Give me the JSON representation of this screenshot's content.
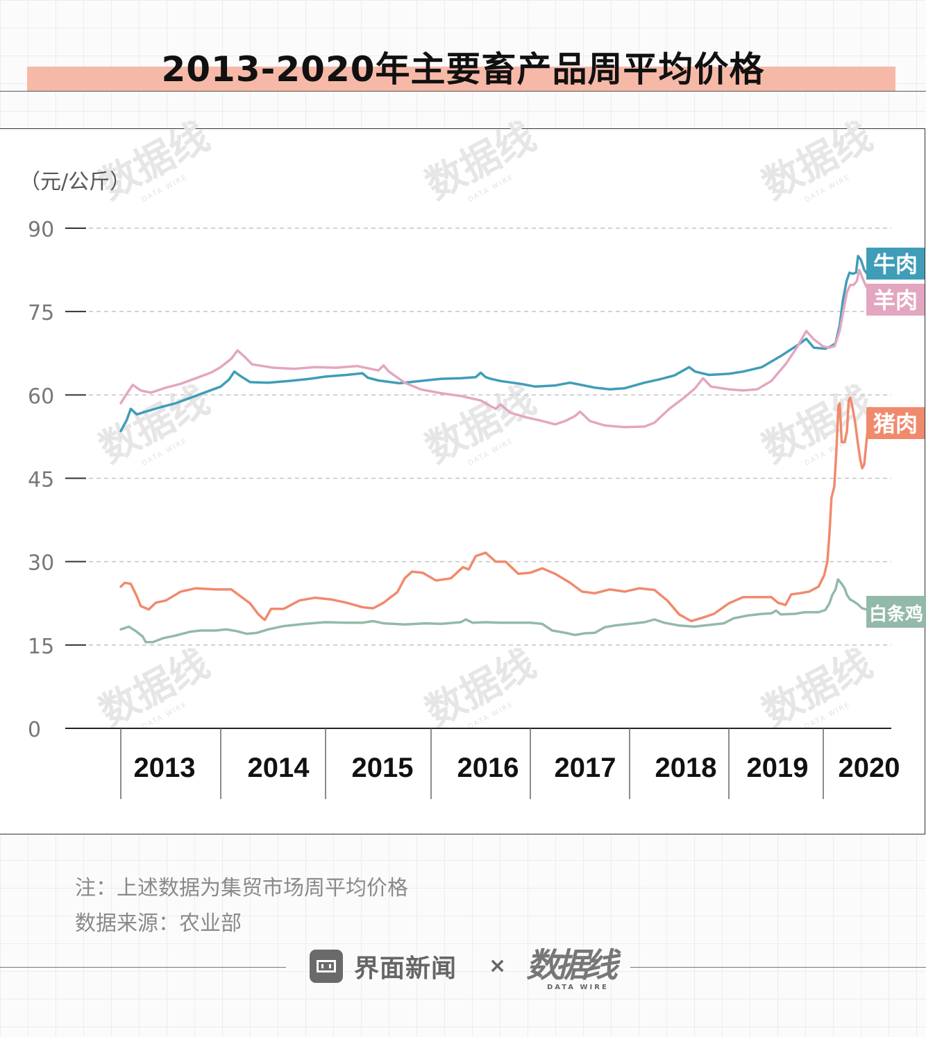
{
  "title": "2013-2020年主要畜产品周平均价格",
  "note": "注：上述数据为集贸市场周平均价格",
  "source": "数据来源：农业部",
  "footer": {
    "brand": "界面新闻",
    "cross": "×",
    "partner": "数据线",
    "partner_sub": "DATA WIRE"
  },
  "watermark": {
    "text": "数据线",
    "sub": "DATA WIRE"
  },
  "chart_data": {
    "type": "line",
    "title": "2013-2020年主要畜产品周平均价格",
    "unit_label": "（元/公斤）",
    "ylim": [
      0,
      90
    ],
    "y_ticks": [
      0,
      15,
      30,
      45,
      60,
      75,
      90
    ],
    "x_tick_labels": [
      "2013",
      "2014",
      "2015",
      "2016",
      "2017",
      "2018",
      "2019",
      "2020"
    ],
    "grid": true,
    "series": [
      {
        "name": "牛肉",
        "color": "#3f9db8",
        "points": [
          [
            2013.0,
            53.5
          ],
          [
            2013.06,
            55.5
          ],
          [
            2013.1,
            57.5
          ],
          [
            2013.16,
            56.5
          ],
          [
            2013.25,
            57.0
          ],
          [
            2013.4,
            57.8
          ],
          [
            2013.55,
            58.5
          ],
          [
            2013.7,
            59.5
          ],
          [
            2013.85,
            60.5
          ],
          [
            2014.0,
            61.5
          ],
          [
            2014.08,
            62.8
          ],
          [
            2014.13,
            64.2
          ],
          [
            2014.18,
            63.5
          ],
          [
            2014.28,
            62.3
          ],
          [
            2014.45,
            62.2
          ],
          [
            2014.65,
            62.5
          ],
          [
            2014.85,
            62.9
          ],
          [
            2015.0,
            63.3
          ],
          [
            2015.2,
            63.6
          ],
          [
            2015.35,
            63.9
          ],
          [
            2015.4,
            63.1
          ],
          [
            2015.5,
            62.6
          ],
          [
            2015.7,
            62.1
          ],
          [
            2015.9,
            62.5
          ],
          [
            2016.1,
            62.9
          ],
          [
            2016.3,
            63.0
          ],
          [
            2016.45,
            63.2
          ],
          [
            2016.5,
            64.0
          ],
          [
            2016.55,
            63.2
          ],
          [
            2016.6,
            62.9
          ],
          [
            2016.7,
            62.5
          ],
          [
            2016.9,
            62.0
          ],
          [
            2017.05,
            61.5
          ],
          [
            2017.25,
            61.7
          ],
          [
            2017.4,
            62.2
          ],
          [
            2017.65,
            61.3
          ],
          [
            2017.8,
            61.0
          ],
          [
            2017.95,
            61.2
          ],
          [
            2018.15,
            62.2
          ],
          [
            2018.3,
            62.8
          ],
          [
            2018.45,
            63.5
          ],
          [
            2018.6,
            65.0
          ],
          [
            2018.66,
            64.2
          ],
          [
            2018.8,
            63.6
          ],
          [
            2019.0,
            63.8
          ],
          [
            2019.15,
            64.2
          ],
          [
            2019.35,
            65.0
          ],
          [
            2019.55,
            67.0
          ],
          [
            2019.75,
            69.2
          ],
          [
            2019.82,
            70.1
          ],
          [
            2019.9,
            68.5
          ],
          [
            2020.05,
            68.3
          ],
          [
            2020.2,
            68.8
          ],
          [
            2020.3,
            69.3
          ],
          [
            2020.4,
            72.5
          ],
          [
            2020.48,
            77.0
          ],
          [
            2020.57,
            80.5
          ],
          [
            2020.64,
            82.0
          ],
          [
            2020.72,
            81.8
          ],
          [
            2020.8,
            82.0
          ],
          [
            2020.85,
            85.0
          ],
          [
            2020.92,
            84.3
          ],
          [
            2021.0,
            82.5
          ],
          [
            2021.1,
            81.5
          ],
          [
            2021.18,
            81.3
          ],
          [
            2021.28,
            82.5
          ],
          [
            2021.36,
            83.5
          ]
        ]
      },
      {
        "name": "羊肉",
        "color": "#e3a6c1",
        "points": [
          [
            2013.0,
            58.5
          ],
          [
            2013.06,
            60.2
          ],
          [
            2013.12,
            61.8
          ],
          [
            2013.2,
            60.8
          ],
          [
            2013.3,
            60.4
          ],
          [
            2013.45,
            61.3
          ],
          [
            2013.6,
            62.0
          ],
          [
            2013.75,
            63.0
          ],
          [
            2013.9,
            64.0
          ],
          [
            2014.0,
            65.0
          ],
          [
            2014.1,
            66.5
          ],
          [
            2014.16,
            68.0
          ],
          [
            2014.22,
            67.0
          ],
          [
            2014.3,
            65.5
          ],
          [
            2014.5,
            64.9
          ],
          [
            2014.7,
            64.7
          ],
          [
            2014.9,
            65.0
          ],
          [
            2015.1,
            64.9
          ],
          [
            2015.3,
            65.2
          ],
          [
            2015.5,
            64.4
          ],
          [
            2015.55,
            65.3
          ],
          [
            2015.6,
            64.2
          ],
          [
            2015.75,
            62.2
          ],
          [
            2015.9,
            61.0
          ],
          [
            2016.1,
            60.3
          ],
          [
            2016.3,
            59.8
          ],
          [
            2016.5,
            59.0
          ],
          [
            2016.6,
            58.0
          ],
          [
            2016.65,
            57.5
          ],
          [
            2016.7,
            58.3
          ],
          [
            2016.75,
            57.5
          ],
          [
            2016.8,
            56.8
          ],
          [
            2016.95,
            56.0
          ],
          [
            2017.1,
            55.4
          ],
          [
            2017.25,
            54.7
          ],
          [
            2017.35,
            55.3
          ],
          [
            2017.45,
            56.2
          ],
          [
            2017.5,
            57.0
          ],
          [
            2017.6,
            55.3
          ],
          [
            2017.75,
            54.5
          ],
          [
            2017.95,
            54.2
          ],
          [
            2018.15,
            54.3
          ],
          [
            2018.25,
            55.0
          ],
          [
            2018.4,
            57.5
          ],
          [
            2018.55,
            59.5
          ],
          [
            2018.66,
            61.2
          ],
          [
            2018.74,
            63.0
          ],
          [
            2018.82,
            61.5
          ],
          [
            2019.0,
            61.0
          ],
          [
            2019.15,
            60.8
          ],
          [
            2019.3,
            61.0
          ],
          [
            2019.45,
            62.5
          ],
          [
            2019.6,
            65.5
          ],
          [
            2019.72,
            68.5
          ],
          [
            2019.82,
            71.5
          ],
          [
            2019.9,
            70.0
          ],
          [
            2020.0,
            68.7
          ],
          [
            2020.15,
            68.5
          ],
          [
            2020.28,
            68.8
          ],
          [
            2020.4,
            71.5
          ],
          [
            2020.5,
            75.5
          ],
          [
            2020.58,
            78.5
          ],
          [
            2020.66,
            79.8
          ],
          [
            2020.74,
            79.8
          ],
          [
            2020.82,
            80.5
          ],
          [
            2020.88,
            82.5
          ],
          [
            2020.96,
            81.0
          ],
          [
            2021.05,
            79.5
          ],
          [
            2021.15,
            78.5
          ],
          [
            2021.25,
            78.8
          ],
          [
            2021.36,
            79.5
          ]
        ]
      },
      {
        "name": "猪肉",
        "color": "#f08a6d",
        "points": [
          [
            2013.0,
            25.5
          ],
          [
            2013.04,
            26.2
          ],
          [
            2013.1,
            26.0
          ],
          [
            2013.16,
            23.8
          ],
          [
            2013.2,
            22.0
          ],
          [
            2013.28,
            21.4
          ],
          [
            2013.35,
            22.6
          ],
          [
            2013.45,
            23.0
          ],
          [
            2013.6,
            24.6
          ],
          [
            2013.75,
            25.2
          ],
          [
            2013.95,
            25.0
          ],
          [
            2014.1,
            25.0
          ],
          [
            2014.2,
            23.6
          ],
          [
            2014.28,
            22.5
          ],
          [
            2014.36,
            20.5
          ],
          [
            2014.42,
            19.5
          ],
          [
            2014.48,
            21.5
          ],
          [
            2014.6,
            21.5
          ],
          [
            2014.75,
            23.0
          ],
          [
            2014.9,
            23.5
          ],
          [
            2015.05,
            23.2
          ],
          [
            2015.2,
            22.6
          ],
          [
            2015.35,
            21.8
          ],
          [
            2015.45,
            21.6
          ],
          [
            2015.55,
            22.6
          ],
          [
            2015.68,
            24.5
          ],
          [
            2015.75,
            27.0
          ],
          [
            2015.82,
            28.2
          ],
          [
            2015.92,
            28.0
          ],
          [
            2016.05,
            26.6
          ],
          [
            2016.2,
            27.0
          ],
          [
            2016.32,
            29.0
          ],
          [
            2016.38,
            28.6
          ],
          [
            2016.45,
            31.0
          ],
          [
            2016.55,
            31.6
          ],
          [
            2016.65,
            30.0
          ],
          [
            2016.75,
            30.0
          ],
          [
            2016.88,
            27.8
          ],
          [
            2017.0,
            28.0
          ],
          [
            2017.12,
            28.8
          ],
          [
            2017.25,
            27.8
          ],
          [
            2017.4,
            26.2
          ],
          [
            2017.52,
            24.6
          ],
          [
            2017.65,
            24.3
          ],
          [
            2017.8,
            25.0
          ],
          [
            2017.95,
            24.6
          ],
          [
            2018.1,
            25.2
          ],
          [
            2018.25,
            24.9
          ],
          [
            2018.38,
            23.0
          ],
          [
            2018.5,
            20.5
          ],
          [
            2018.62,
            19.3
          ],
          [
            2018.75,
            20.0
          ],
          [
            2018.85,
            20.6
          ],
          [
            2019.0,
            22.5
          ],
          [
            2019.15,
            23.6
          ],
          [
            2019.3,
            23.6
          ],
          [
            2019.45,
            23.6
          ],
          [
            2019.52,
            22.6
          ],
          [
            2019.6,
            22.2
          ],
          [
            2019.66,
            24.1
          ],
          [
            2019.75,
            24.3
          ],
          [
            2019.85,
            24.6
          ],
          [
            2019.95,
            25.5
          ],
          [
            2020.02,
            27.5
          ],
          [
            2020.1,
            30.0
          ],
          [
            2020.15,
            35.0
          ],
          [
            2020.2,
            41.5
          ],
          [
            2020.27,
            43.5
          ],
          [
            2020.32,
            50.0
          ],
          [
            2020.37,
            58.0
          ],
          [
            2020.4,
            58.5
          ],
          [
            2020.45,
            51.5
          ],
          [
            2020.52,
            51.5
          ],
          [
            2020.58,
            53.5
          ],
          [
            2020.62,
            59.0
          ],
          [
            2020.66,
            59.5
          ],
          [
            2020.72,
            57.5
          ],
          [
            2020.78,
            55.0
          ],
          [
            2020.84,
            51.5
          ],
          [
            2020.9,
            48.5
          ],
          [
            2020.95,
            46.8
          ],
          [
            2021.0,
            47.5
          ],
          [
            2021.08,
            53.5
          ],
          [
            2021.15,
            55.5
          ],
          [
            2021.22,
            56.5
          ]
        ]
      },
      {
        "name": "白条鸡",
        "color": "#93b9a9",
        "points": [
          [
            2013.0,
            17.8
          ],
          [
            2013.08,
            18.3
          ],
          [
            2013.15,
            17.5
          ],
          [
            2013.22,
            16.5
          ],
          [
            2013.25,
            15.5
          ],
          [
            2013.32,
            15.5
          ],
          [
            2013.42,
            16.2
          ],
          [
            2013.55,
            16.7
          ],
          [
            2013.7,
            17.4
          ],
          [
            2013.8,
            17.6
          ],
          [
            2013.95,
            17.6
          ],
          [
            2014.05,
            17.8
          ],
          [
            2014.15,
            17.5
          ],
          [
            2014.25,
            17.0
          ],
          [
            2014.35,
            17.2
          ],
          [
            2014.45,
            17.8
          ],
          [
            2014.6,
            18.4
          ],
          [
            2014.8,
            18.8
          ],
          [
            2015.0,
            19.1
          ],
          [
            2015.2,
            19.0
          ],
          [
            2015.35,
            19.0
          ],
          [
            2015.45,
            19.3
          ],
          [
            2015.55,
            18.9
          ],
          [
            2015.75,
            18.7
          ],
          [
            2015.95,
            18.9
          ],
          [
            2016.1,
            18.8
          ],
          [
            2016.3,
            19.1
          ],
          [
            2016.35,
            19.6
          ],
          [
            2016.42,
            19.0
          ],
          [
            2016.55,
            19.1
          ],
          [
            2016.7,
            19.0
          ],
          [
            2016.88,
            19.0
          ],
          [
            2017.0,
            19.0
          ],
          [
            2017.12,
            18.8
          ],
          [
            2017.22,
            17.6
          ],
          [
            2017.35,
            17.2
          ],
          [
            2017.45,
            16.8
          ],
          [
            2017.55,
            17.1
          ],
          [
            2017.65,
            17.2
          ],
          [
            2017.75,
            18.2
          ],
          [
            2017.85,
            18.5
          ],
          [
            2018.0,
            18.8
          ],
          [
            2018.15,
            19.1
          ],
          [
            2018.25,
            19.6
          ],
          [
            2018.35,
            19.0
          ],
          [
            2018.5,
            18.5
          ],
          [
            2018.65,
            18.3
          ],
          [
            2018.8,
            18.6
          ],
          [
            2018.95,
            18.9
          ],
          [
            2019.05,
            19.8
          ],
          [
            2019.2,
            20.3
          ],
          [
            2019.35,
            20.6
          ],
          [
            2019.45,
            20.7
          ],
          [
            2019.5,
            21.2
          ],
          [
            2019.55,
            20.5
          ],
          [
            2019.7,
            20.6
          ],
          [
            2019.8,
            20.9
          ],
          [
            2019.95,
            20.9
          ],
          [
            2020.05,
            21.3
          ],
          [
            2020.15,
            22.5
          ],
          [
            2020.22,
            24.0
          ],
          [
            2020.3,
            25.0
          ],
          [
            2020.36,
            26.8
          ],
          [
            2020.45,
            26.0
          ],
          [
            2020.52,
            25.2
          ],
          [
            2020.58,
            24.0
          ],
          [
            2020.65,
            23.2
          ],
          [
            2020.75,
            22.8
          ],
          [
            2020.85,
            22.3
          ],
          [
            2020.95,
            21.6
          ],
          [
            2021.05,
            21.4
          ],
          [
            2021.15,
            21.6
          ],
          [
            2021.22,
            22.0
          ]
        ]
      }
    ]
  }
}
